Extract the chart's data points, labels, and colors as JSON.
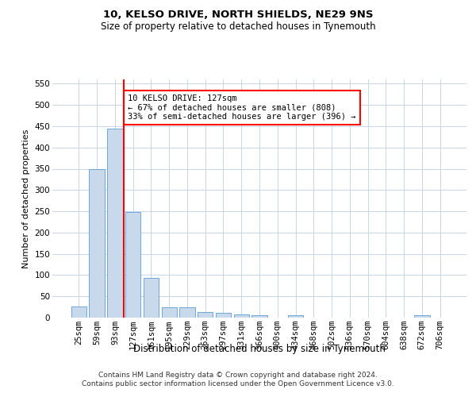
{
  "title1": "10, KELSO DRIVE, NORTH SHIELDS, NE29 9NS",
  "title2": "Size of property relative to detached houses in Tynemouth",
  "xlabel": "Distribution of detached houses by size in Tynemouth",
  "ylabel": "Number of detached properties",
  "footnote": "Contains HM Land Registry data © Crown copyright and database right 2024.\nContains public sector information licensed under the Open Government Licence v3.0.",
  "bin_labels": [
    "25sqm",
    "59sqm",
    "93sqm",
    "127sqm",
    "161sqm",
    "195sqm",
    "229sqm",
    "263sqm",
    "297sqm",
    "331sqm",
    "366sqm",
    "400sqm",
    "434sqm",
    "468sqm",
    "502sqm",
    "536sqm",
    "570sqm",
    "604sqm",
    "638sqm",
    "672sqm",
    "706sqm"
  ],
  "bar_values": [
    27,
    350,
    445,
    248,
    93,
    25,
    25,
    14,
    11,
    7,
    6,
    0,
    5,
    0,
    0,
    0,
    0,
    0,
    0,
    5,
    0
  ],
  "bar_color": "#c9d9ec",
  "bar_edge_color": "#5b9bd5",
  "reference_line_index": 3,
  "reference_line_color": "red",
  "annotation_text": "10 KELSO DRIVE: 127sqm\n← 67% of detached houses are smaller (808)\n33% of semi-detached houses are larger (396) →",
  "ylim": [
    0,
    560
  ],
  "yticks": [
    0,
    50,
    100,
    150,
    200,
    250,
    300,
    350,
    400,
    450,
    500,
    550
  ],
  "bg_color": "#ffffff",
  "grid_color": "#c8d4e8",
  "title1_fontsize": 9.5,
  "title2_fontsize": 8.5,
  "ylabel_fontsize": 8,
  "xlabel_fontsize": 8.5,
  "tick_fontsize": 7.5,
  "annotation_fontsize": 7.5,
  "footnote_fontsize": 6.5
}
